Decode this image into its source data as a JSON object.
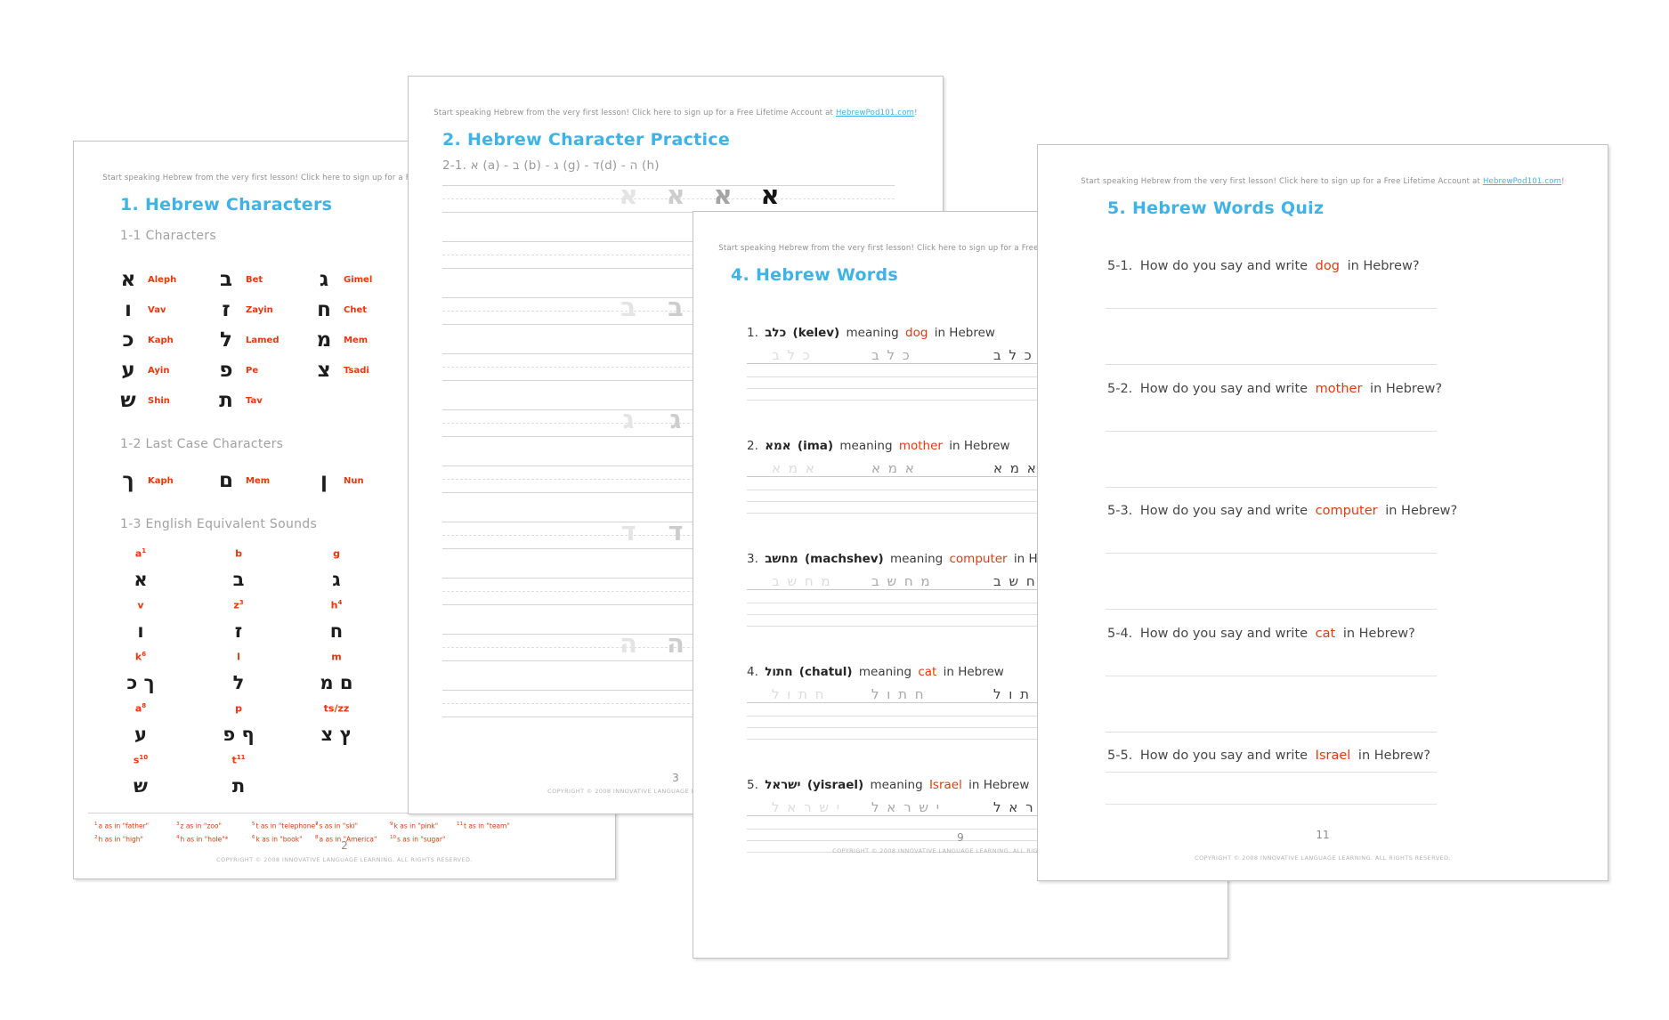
{
  "colors": {
    "accent_blue": "#3eb3e8",
    "accent_red": "#e8380d",
    "heading_gray": "#a2a2a2"
  },
  "tagline": {
    "prefix": "Start speaking Hebrew from the very first lesson! Click here to sign up for a Free Lifetime Account at ",
    "link_text": "HebrewPod101.com",
    "suffix": "!"
  },
  "copyright": "COPYRIGHT © 2008 INNOVATIVE LANGUAGE LEARNING. ALL RIGHTS RESERVED.",
  "page1": {
    "title": "1. Hebrew Characters",
    "section_1_1": {
      "heading": "1-1 Characters",
      "characters": [
        {
          "char": "א",
          "name": "Aleph"
        },
        {
          "char": "ב",
          "name": "Bet"
        },
        {
          "char": "ג",
          "name": "Gimel"
        },
        {
          "char": "ו",
          "name": "Vav"
        },
        {
          "char": "ז",
          "name": "Zayin"
        },
        {
          "char": "ח",
          "name": "Chet"
        },
        {
          "char": "כ",
          "name": "Kaph"
        },
        {
          "char": "ל",
          "name": "Lamed"
        },
        {
          "char": "מ",
          "name": "Mem"
        },
        {
          "char": "ע",
          "name": "Ayin"
        },
        {
          "char": "פ",
          "name": "Pe"
        },
        {
          "char": "צ",
          "name": "Tsadi"
        },
        {
          "char": "ש",
          "name": "Shin"
        },
        {
          "char": "ת",
          "name": "Tav"
        }
      ]
    },
    "section_1_2": {
      "heading": "1-2 Last Case Characters",
      "characters": [
        {
          "char": "ך",
          "name": "Kaph"
        },
        {
          "char": "ם",
          "name": "Mem"
        },
        {
          "char": "ן",
          "name": "Nun"
        }
      ]
    },
    "section_1_3": {
      "heading": "1-3 English Equivalent Sounds",
      "cells": [
        {
          "sound": "a",
          "sup": "1",
          "chars": "א"
        },
        {
          "sound": "b",
          "sup": "",
          "chars": "ב"
        },
        {
          "sound": "g",
          "sup": "",
          "chars": "ג"
        },
        {
          "sound": "v",
          "sup": "",
          "chars": "ו"
        },
        {
          "sound": "z",
          "sup": "3",
          "chars": "ז"
        },
        {
          "sound": "h",
          "sup": "4",
          "chars": "ח"
        },
        {
          "sound": "k",
          "sup": "6",
          "chars": "ך כ"
        },
        {
          "sound": "l",
          "sup": "",
          "chars": "ל"
        },
        {
          "sound": "m",
          "sup": "",
          "chars": "ם מ"
        },
        {
          "sound": "a",
          "sup": "8",
          "chars": "ע"
        },
        {
          "sound": "p",
          "sup": "",
          "chars": "ף פ"
        },
        {
          "sound": "ts/zz",
          "sup": "",
          "chars": "ץ צ"
        },
        {
          "sound": "s",
          "sup": "10",
          "chars": "ש"
        },
        {
          "sound": "t",
          "sup": "11",
          "chars": "ת"
        }
      ]
    },
    "footnotes": [
      {
        "sup_a": "1",
        "text_a": "a as in \"father\"",
        "sup_b": "2",
        "text_b": "h as in \"high\""
      },
      {
        "sup_a": "3",
        "text_a": "z as in \"zoo\"",
        "sup_b": "4",
        "text_b": "h as in \"hole\"*"
      },
      {
        "sup_a": "5",
        "text_a": "t as in \"telephone\"",
        "sup_b": "6",
        "text_b": "k as in \"book\""
      },
      {
        "sup_a": "7",
        "text_a": "s as in \"ski\"",
        "sup_b": "8",
        "text_b": "a as in \"America\""
      },
      {
        "sup_a": "9",
        "text_a": "k as in \"pink\"",
        "sup_b": "10",
        "text_b": "s as in \"sugar\""
      },
      {
        "sup_a": "11",
        "text_a": "t as in \"team\"",
        "sup_b": "",
        "text_b": ""
      }
    ],
    "page_number": "2"
  },
  "page2": {
    "title": "2. Hebrew Character Practice",
    "subtitle": "2-1. א (a) - ב (b) - ג (g) - ד(d) - ה (h)",
    "practice_letters": [
      "א",
      "ב",
      "ג",
      "ד",
      "ה"
    ],
    "page_number": "3"
  },
  "page3": {
    "title": "4. Hebrew Words",
    "meaning_label": "meaning",
    "in_hebrew_label": "in Hebrew",
    "items": [
      {
        "num": "1.",
        "hebrew": "כלב",
        "translit": "(kelev)",
        "word": "dog"
      },
      {
        "num": "2.",
        "hebrew": "אמא",
        "translit": "(ima)",
        "word": "mother"
      },
      {
        "num": "3.",
        "hebrew": "מחשב",
        "translit": "(machshev)",
        "word": "computer"
      },
      {
        "num": "4.",
        "hebrew": "חתול",
        "translit": "(chatul)",
        "word": "cat"
      },
      {
        "num": "5.",
        "hebrew": "ישראל",
        "translit": "(yisrael)",
        "word": "Israel"
      }
    ],
    "page_number": "9"
  },
  "page4": {
    "title": "5. Hebrew Words Quiz",
    "question_prefix": "How do you say and write",
    "question_suffix": "in Hebrew?",
    "questions": [
      {
        "num": "5-1.",
        "word": "dog"
      },
      {
        "num": "5-2.",
        "word": "mother"
      },
      {
        "num": "5-3.",
        "word": "computer"
      },
      {
        "num": "5-4.",
        "word": "cat"
      },
      {
        "num": "5-5.",
        "word": "Israel"
      }
    ],
    "page_number": "11"
  }
}
